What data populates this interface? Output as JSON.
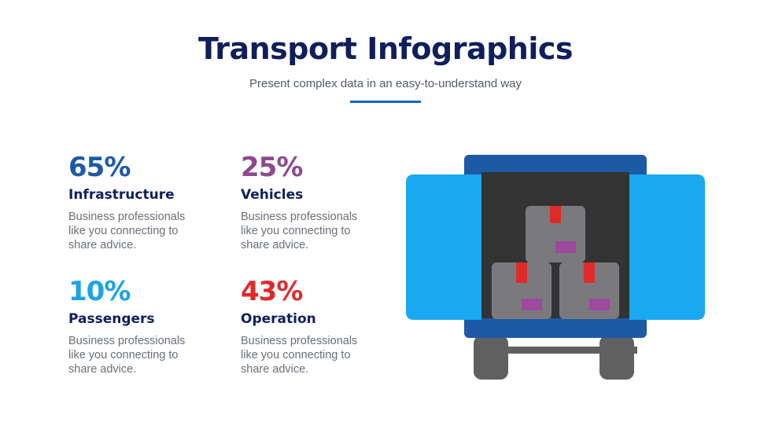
{
  "header": {
    "title": "Transport Infographics",
    "subtitle": "Present complex data in an easy-to-understand way"
  },
  "stats": [
    {
      "value": "65%",
      "label": "Infrastructure",
      "description": "Business professionals like you connecting to share advice.",
      "color": "#1d5aa6"
    },
    {
      "value": "25%",
      "label": "Vehicles",
      "description": "Business professionals like you connecting to share advice.",
      "color": "#8e4a8e"
    },
    {
      "value": "10%",
      "label": "Passengers",
      "description": "Business professionals like you connecting to share advice.",
      "color": "#1aa3e8"
    },
    {
      "value": "43%",
      "label": "Operation",
      "description": "Business professionals like you connecting to share advice.",
      "color": "#e02a2a"
    }
  ],
  "illustration": {
    "icon": "delivery-truck-open-doors-icon",
    "colors": {
      "door": "#1aa9f0",
      "frame": "#1d5aa6",
      "cargo": "#333333",
      "box": "#7a7a7e",
      "tape": "#e02a2a",
      "box_label": "#9c4a9c",
      "wheel": "#606060"
    }
  }
}
